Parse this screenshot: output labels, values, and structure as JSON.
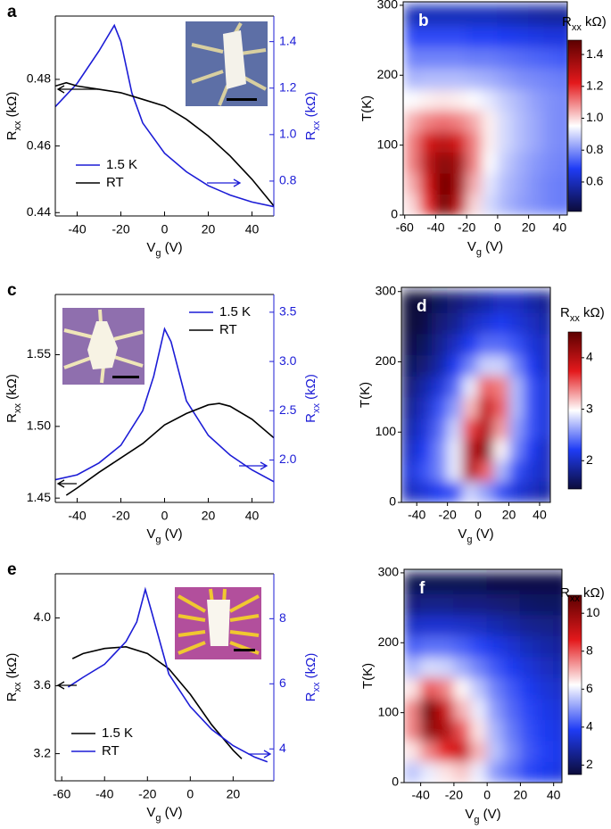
{
  "chart_data": [
    {
      "type": "line",
      "label": "a",
      "xlabel": [
        "V",
        "g",
        " (V)"
      ],
      "ylabel": [
        "R",
        "xx",
        " (kΩ)"
      ],
      "y2label": [
        "R",
        "xx",
        " (kΩ)"
      ],
      "y2color": "#1c1cd6",
      "xlim": [
        -50,
        50
      ],
      "xticks": [
        -40,
        -20,
        0,
        20,
        40
      ],
      "ylim": [
        0.439,
        0.499
      ],
      "yticks": [
        0.44,
        0.46,
        0.48
      ],
      "y2lim": [
        0.65,
        1.51
      ],
      "y2ticks": [
        0.8,
        {
          "value": 1,
          "label": "1.0"
        },
        1.2,
        1.4
      ],
      "series": [
        {
          "name": "1.5 K",
          "color": "#1c1cd6",
          "axis": "y2",
          "x": [
            -50,
            -40,
            -30,
            -23,
            -20,
            -15,
            -10,
            0,
            10,
            20,
            30,
            40,
            50
          ],
          "values": [
            1.12,
            1.22,
            1.36,
            1.47,
            1.4,
            1.18,
            1.05,
            0.92,
            0.84,
            0.78,
            0.74,
            0.71,
            0.69
          ]
        },
        {
          "name": "RT",
          "color": "#000000",
          "x": [
            -50,
            -45,
            -40,
            -30,
            -20,
            -10,
            0,
            10,
            20,
            30,
            40,
            50
          ],
          "values": [
            0.478,
            0.479,
            0.478,
            0.477,
            0.476,
            0.474,
            0.472,
            0.468,
            0.463,
            0.457,
            0.45,
            0.442
          ]
        }
      ]
    },
    {
      "type": "heatmap",
      "label": "b",
      "xlabel": [
        "V",
        "g",
        " (V)"
      ],
      "ylabel": "T(K)",
      "colorbar_label": [
        "R",
        "xx",
        " kΩ)"
      ],
      "xlim": [
        -61,
        45
      ],
      "xticks": [
        -60,
        -40,
        -20,
        0,
        20,
        40
      ],
      "ylim": [
        0,
        305
      ],
      "yticks": [
        0,
        100,
        200,
        300
      ],
      "clim": [
        0.415,
        1.49
      ],
      "cticks": [
        0.6,
        0.8,
        {
          "value": 1,
          "label": "1.0"
        },
        1.2,
        1.4
      ],
      "colormap": [
        "#0c0c3a",
        "#1f3cf5",
        "#ffffff",
        "#e4191c",
        "#5c0000"
      ],
      "x": [
        -55,
        -45,
        -35,
        -25,
        -15,
        -5,
        5,
        15,
        25,
        35,
        45
      ],
      "y": [
        15,
        45,
        75,
        105,
        135,
        165,
        195,
        225,
        255,
        285
      ],
      "z": [
        [
          1.0,
          1.2,
          1.45,
          1.3,
          1.0,
          0.9,
          0.85,
          0.82,
          0.8,
          0.78,
          0.77
        ],
        [
          1.05,
          1.25,
          1.45,
          1.35,
          1.05,
          0.92,
          0.86,
          0.83,
          0.8,
          0.78,
          0.77
        ],
        [
          1.1,
          1.3,
          1.4,
          1.35,
          1.1,
          0.95,
          0.88,
          0.84,
          0.81,
          0.79,
          0.78
        ],
        [
          1.1,
          1.25,
          1.3,
          1.25,
          1.1,
          0.97,
          0.9,
          0.86,
          0.83,
          0.8,
          0.79
        ],
        [
          1.05,
          1.1,
          1.12,
          1.1,
          1.05,
          0.97,
          0.9,
          0.86,
          0.83,
          0.8,
          0.79
        ],
        [
          0.95,
          0.97,
          0.98,
          0.97,
          0.95,
          0.92,
          0.88,
          0.85,
          0.82,
          0.8,
          0.79
        ],
        [
          0.85,
          0.86,
          0.86,
          0.86,
          0.85,
          0.84,
          0.82,
          0.8,
          0.79,
          0.78,
          0.77
        ],
        [
          0.78,
          0.78,
          0.78,
          0.78,
          0.77,
          0.77,
          0.76,
          0.75,
          0.74,
          0.73,
          0.72
        ],
        [
          0.7,
          0.7,
          0.7,
          0.7,
          0.69,
          0.69,
          0.68,
          0.67,
          0.66,
          0.65,
          0.65
        ],
        [
          0.6,
          0.6,
          0.6,
          0.6,
          0.6,
          0.6,
          0.59,
          0.58,
          0.57,
          0.56,
          0.56
        ]
      ]
    },
    {
      "type": "line",
      "label": "c",
      "xlabel": [
        "V",
        "g",
        " (V)"
      ],
      "ylabel": [
        "R",
        "xx",
        " (kΩ)"
      ],
      "y2label": [
        "R",
        "xx",
        " (kΩ)"
      ],
      "y2color": "#1c1cd6",
      "xlim": [
        -50,
        50
      ],
      "xticks": [
        -40,
        -20,
        0,
        20,
        40
      ],
      "ylim": [
        1.447,
        1.592
      ],
      "yticks": [
        1.45,
        {
          "value": 1.5,
          "label": "1.50"
        },
        1.55
      ],
      "y2lim": [
        1.57,
        3.68
      ],
      "y2ticks": [
        {
          "value": 2,
          "label": "2.0"
        },
        2.5,
        {
          "value": 3,
          "label": "3.0"
        },
        3.5
      ],
      "series": [
        {
          "name": "1.5 K",
          "color": "#1c1cd6",
          "axis": "y2",
          "x": [
            -50,
            -40,
            -30,
            -20,
            -10,
            -5,
            0,
            3,
            10,
            20,
            30,
            40,
            50
          ],
          "values": [
            1.8,
            1.85,
            1.97,
            2.15,
            2.5,
            2.85,
            3.33,
            3.2,
            2.6,
            2.25,
            2.05,
            1.9,
            1.78
          ]
        },
        {
          "name": "RT",
          "color": "#000000",
          "x": [
            -45,
            -40,
            -30,
            -20,
            -10,
            0,
            10,
            20,
            25,
            30,
            40,
            50
          ],
          "values": [
            1.452,
            1.457,
            1.468,
            1.478,
            1.488,
            1.501,
            1.509,
            1.515,
            1.516,
            1.514,
            1.505,
            1.492
          ]
        }
      ]
    },
    {
      "type": "heatmap",
      "label": "d",
      "xlabel": [
        "V",
        "g",
        " (V)"
      ],
      "ylabel": "T(K)",
      "colorbar_label": [
        "R",
        "xx",
        " kΩ)"
      ],
      "xlim": [
        -50,
        47
      ],
      "xticks": [
        -40,
        -20,
        0,
        20,
        40
      ],
      "ylim": [
        0,
        306
      ],
      "yticks": [
        0,
        100,
        200,
        300
      ],
      "clim": [
        1.45,
        4.5
      ],
      "cticks": [
        2,
        3,
        4
      ],
      "colormap": [
        "#0c0c3a",
        "#1f3cf5",
        "#ffffff",
        "#e4191c",
        "#5c0000"
      ],
      "x": [
        -45,
        -35,
        -25,
        -15,
        -5,
        5,
        15,
        25,
        35,
        45
      ],
      "y": [
        15,
        45,
        75,
        105,
        135,
        165,
        195,
        225,
        255,
        285
      ],
      "z": [
        [
          2.0,
          2.1,
          2.2,
          2.3,
          2.8,
          2.6,
          2.3,
          2.1,
          2.0,
          1.9
        ],
        [
          2.1,
          2.3,
          2.5,
          2.9,
          4.0,
          3.5,
          2.7,
          2.3,
          2.1,
          2.0
        ],
        [
          2.0,
          2.2,
          2.5,
          2.9,
          4.0,
          4.2,
          3.0,
          2.5,
          2.2,
          2.0
        ],
        [
          1.9,
          2.1,
          2.4,
          2.8,
          3.6,
          4.0,
          3.3,
          2.6,
          2.3,
          2.1
        ],
        [
          1.8,
          2.0,
          2.3,
          2.6,
          3.2,
          3.9,
          3.5,
          2.7,
          2.3,
          2.1
        ],
        [
          1.7,
          1.9,
          2.1,
          2.4,
          2.9,
          3.5,
          3.4,
          2.7,
          2.3,
          2.1
        ],
        [
          1.6,
          1.7,
          1.9,
          2.2,
          2.5,
          2.8,
          2.8,
          2.5,
          2.2,
          2.0
        ],
        [
          1.5,
          1.6,
          1.8,
          2.0,
          2.2,
          2.4,
          2.4,
          2.3,
          2.1,
          2.0
        ],
        [
          1.45,
          1.5,
          1.7,
          1.8,
          2.0,
          2.1,
          2.2,
          2.1,
          2.0,
          1.9
        ],
        [
          1.45,
          1.45,
          1.6,
          1.7,
          1.8,
          1.9,
          2.0,
          2.0,
          1.9,
          1.8
        ]
      ]
    },
    {
      "type": "line",
      "label": "e",
      "xlabel": [
        "V",
        "g",
        " (V)"
      ],
      "ylabel": [
        "R",
        "xx",
        " (kΩ)"
      ],
      "y2label": [
        "R",
        "xx",
        " (kΩ)"
      ],
      "y2color": "#1c1cd6",
      "xlim": [
        -63,
        39
      ],
      "xticks": [
        -60,
        -40,
        -20,
        0,
        20
      ],
      "ylim": [
        3.04,
        4.26
      ],
      "yticks": [
        3.2,
        3.6,
        {
          "value": 4,
          "label": "4.0"
        }
      ],
      "y2lim": [
        3.02,
        9.38
      ],
      "y2ticks": [
        4,
        6,
        8
      ],
      "series": [
        {
          "name": "1.5 K",
          "color": "#000000",
          "x": [
            -55,
            -50,
            -40,
            -30,
            -20,
            -10,
            0,
            10,
            20,
            24
          ],
          "values": [
            3.76,
            3.79,
            3.82,
            3.83,
            3.79,
            3.7,
            3.55,
            3.37,
            3.22,
            3.17
          ]
        },
        {
          "name": "RT",
          "color": "#1c1cd6",
          "axis": "y2",
          "x": [
            -57,
            -50,
            -40,
            -30,
            -25,
            -21,
            -18,
            -10,
            0,
            10,
            20,
            30,
            36
          ],
          "values": [
            5.9,
            6.2,
            6.6,
            7.3,
            7.9,
            8.9,
            8.2,
            6.3,
            5.3,
            4.6,
            4.1,
            3.75,
            3.6
          ]
        }
      ]
    },
    {
      "type": "heatmap",
      "label": "f",
      "xlabel": [
        "V",
        "g",
        " (V)"
      ],
      "ylabel": "T(K)",
      "colorbar_label": [
        "R",
        "xx",
        " kΩ)"
      ],
      "xlim": [
        -50,
        45
      ],
      "xticks": [
        -40,
        -20,
        0,
        20,
        40
      ],
      "ylim": [
        0,
        305
      ],
      "yticks": [
        0,
        100,
        200,
        300
      ],
      "clim": [
        1.5,
        10.95
      ],
      "cticks": [
        2,
        4,
        6,
        8,
        10
      ],
      "colormap": [
        "#0c0c3a",
        "#1f3cf5",
        "#ffffff",
        "#e4191c",
        "#5c0000"
      ],
      "x": [
        -45,
        -35,
        -25,
        -15,
        -5,
        5,
        15,
        25,
        35,
        45
      ],
      "y": [
        15,
        45,
        75,
        105,
        135,
        165,
        195,
        225,
        255,
        285
      ],
      "z": [
        [
          5.5,
          6.0,
          6.5,
          6.8,
          6.0,
          5.0,
          4.5,
          4.0,
          3.8,
          3.6
        ],
        [
          6.5,
          7.5,
          8.5,
          9.0,
          7.0,
          5.5,
          4.8,
          4.2,
          3.9,
          3.7
        ],
        [
          7.5,
          10.0,
          9.5,
          8.0,
          6.5,
          5.3,
          4.6,
          4.1,
          3.8,
          3.6
        ],
        [
          7.5,
          10.5,
          9.0,
          7.0,
          6.0,
          5.0,
          4.4,
          4.0,
          3.7,
          3.5
        ],
        [
          6.5,
          8.0,
          7.5,
          6.3,
          5.5,
          4.7,
          4.2,
          3.8,
          3.5,
          3.3
        ],
        [
          5.3,
          5.8,
          5.7,
          5.2,
          4.7,
          4.2,
          3.8,
          3.5,
          3.2,
          3.0
        ],
        [
          4.3,
          4.5,
          4.5,
          4.3,
          4.0,
          3.7,
          3.4,
          3.1,
          2.9,
          2.7
        ],
        [
          3.3,
          3.4,
          3.4,
          3.3,
          3.2,
          3.0,
          2.8,
          2.6,
          2.5,
          2.4
        ],
        [
          2.4,
          2.5,
          2.5,
          2.4,
          2.4,
          2.3,
          2.2,
          2.1,
          2.0,
          2.0
        ],
        [
          1.8,
          1.8,
          1.8,
          1.8,
          1.8,
          1.7,
          1.7,
          1.7,
          1.7,
          1.7
        ]
      ]
    }
  ]
}
